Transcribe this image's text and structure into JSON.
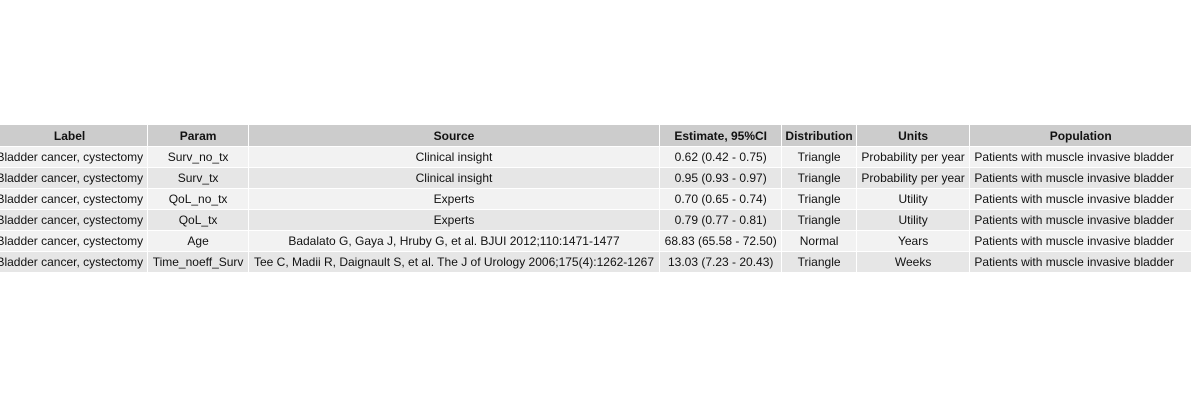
{
  "table": {
    "columns": [
      "Label",
      "Param",
      "Source",
      "Estimate, 95%CI",
      "Distribution",
      "Units",
      "Population"
    ],
    "rows": [
      [
        "Bladder cancer, cystectomy",
        "Surv_no_tx",
        "Clinical insight",
        "0.62 (0.42 - 0.75)",
        "Triangle",
        "Probability per year",
        "Patients with muscle invasive bladder"
      ],
      [
        "Bladder cancer, cystectomy",
        "Surv_tx",
        "Clinical insight",
        "0.95 (0.93 - 0.97)",
        "Triangle",
        "Probability per year",
        "Patients with muscle invasive bladder"
      ],
      [
        "Bladder cancer, cystectomy",
        "QoL_no_tx",
        "Experts",
        "0.70 (0.65 - 0.74)",
        "Triangle",
        "Utility",
        "Patients with muscle invasive bladder"
      ],
      [
        "Bladder cancer, cystectomy",
        "QoL_tx",
        "Experts",
        "0.79 (0.77 - 0.81)",
        "Triangle",
        "Utility",
        "Patients with muscle invasive bladder"
      ],
      [
        "Bladder cancer, cystectomy",
        "Age",
        "Badalato G, Gaya J, Hruby G, et al. BJUI 2012;110:1471-1477",
        "68.83 (65.58 - 72.50)",
        "Normal",
        "Years",
        "Patients with muscle invasive bladder"
      ],
      [
        "Bladder cancer, cystectomy",
        "Time_noeff_Surv",
        "Tee C, Madii R, Daignault S, et al. The J of Urology 2006;175(4):1262-1267",
        "13.03 (7.23 - 20.43)",
        "Triangle",
        "Weeks",
        "Patients with muscle invasive bladder"
      ]
    ]
  }
}
